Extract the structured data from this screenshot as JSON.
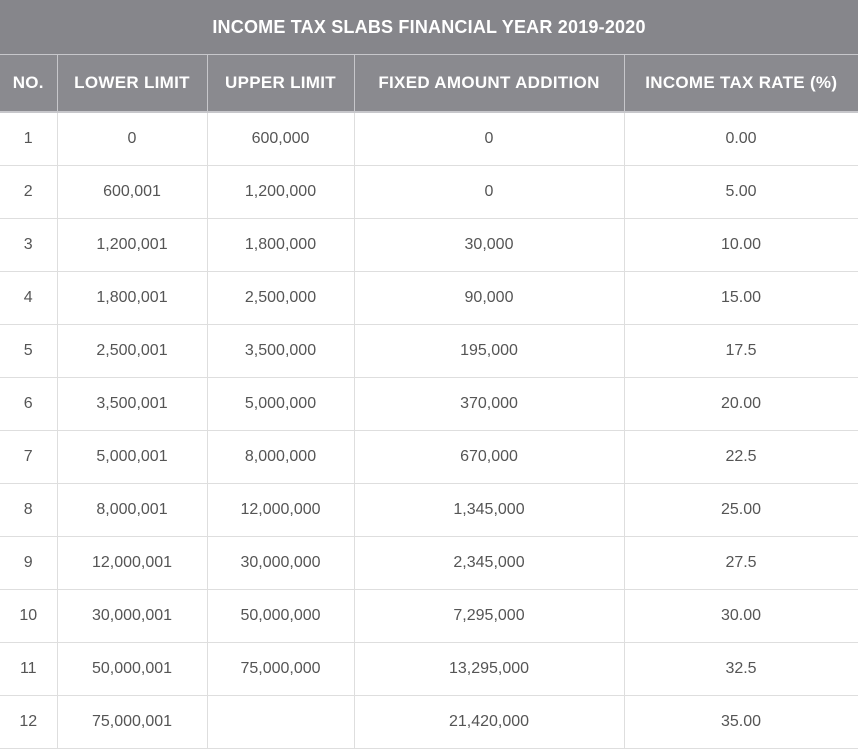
{
  "table": {
    "title": "INCOME TAX SLABS FINANCIAL YEAR 2019-2020",
    "headers": [
      "NO.",
      "LOWER LIMIT",
      "UPPER LIMIT",
      "FIXED AMOUNT ADDITION",
      "INCOME TAX RATE (%)"
    ],
    "rows": [
      {
        "no": "1",
        "lower": "0",
        "upper": "600,000",
        "fixed": "0",
        "rate": "0.00"
      },
      {
        "no": "2",
        "lower": "600,001",
        "upper": "1,200,000",
        "fixed": "0",
        "rate": "5.00"
      },
      {
        "no": "3",
        "lower": "1,200,001",
        "upper": "1,800,000",
        "fixed": "30,000",
        "rate": "10.00"
      },
      {
        "no": "4",
        "lower": "1,800,001",
        "upper": "2,500,000",
        "fixed": "90,000",
        "rate": "15.00"
      },
      {
        "no": "5",
        "lower": "2,500,001",
        "upper": "3,500,000",
        "fixed": "195,000",
        "rate": "17.5"
      },
      {
        "no": "6",
        "lower": "3,500,001",
        "upper": "5,000,000",
        "fixed": "370,000",
        "rate": "20.00"
      },
      {
        "no": "7",
        "lower": "5,000,001",
        "upper": "8,000,000",
        "fixed": "670,000",
        "rate": "22.5"
      },
      {
        "no": "8",
        "lower": "8,000,001",
        "upper": "12,000,000",
        "fixed": "1,345,000",
        "rate": "25.00"
      },
      {
        "no": "9",
        "lower": "12,000,001",
        "upper": "30,000,000",
        "fixed": "2,345,000",
        "rate": "27.5"
      },
      {
        "no": "10",
        "lower": "30,000,001",
        "upper": "50,000,000",
        "fixed": "7,295,000",
        "rate": "30.00"
      },
      {
        "no": "11",
        "lower": "50,000,001",
        "upper": "75,000,000",
        "fixed": "13,295,000",
        "rate": "32.5"
      },
      {
        "no": "12",
        "lower": "75,000,001",
        "upper": "",
        "fixed": "21,420,000",
        "rate": "35.00"
      }
    ]
  },
  "colors": {
    "title_bg": "#86868b",
    "header_bg": "#8a8a8f",
    "text": "#555555",
    "grid": "#dedede"
  }
}
